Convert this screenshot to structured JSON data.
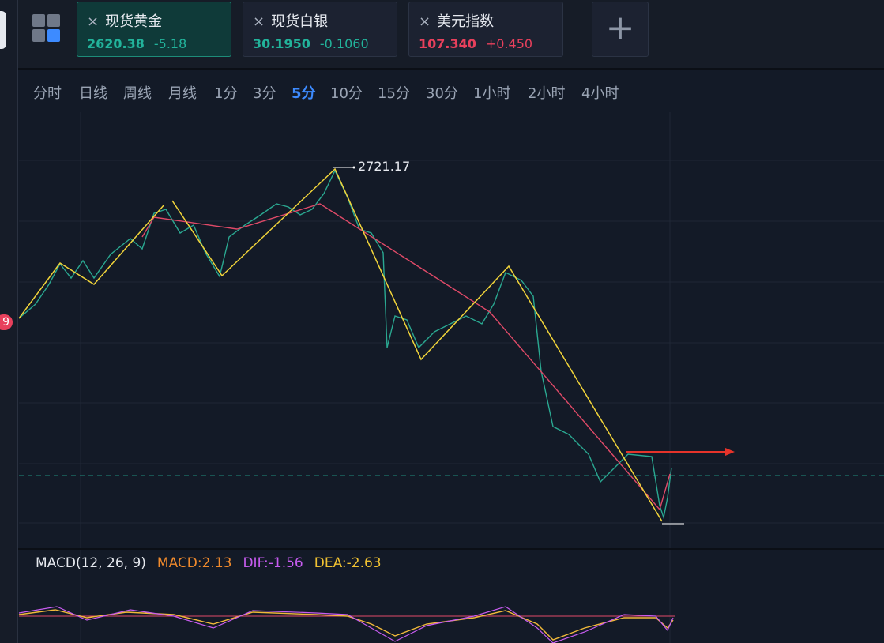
{
  "tabs": [
    {
      "name": "现货黄金",
      "price": "2620.38",
      "change": "-5.18",
      "trend": "down",
      "active": true
    },
    {
      "name": "现货白银",
      "price": "30.1950",
      "change": "-0.1060",
      "trend": "down",
      "active": false
    },
    {
      "name": "美元指数",
      "price": "107.340",
      "change": "+0.450",
      "trend": "up",
      "active": false
    }
  ],
  "close_icon": "×",
  "add_icon": "+",
  "periods": [
    "分时",
    "日线",
    "周线",
    "月线",
    "1分",
    "3分",
    "5分",
    "10分",
    "15分",
    "30分",
    "1小时",
    "2小时",
    "4小时"
  ],
  "selected_period": "5分",
  "side_badge": "9",
  "chart": {
    "high_label": "2721.17"
  },
  "macd": {
    "title": "MACD(12, 26, 9)",
    "macd": "MACD:2.13",
    "dif": "DIF:-1.56",
    "dea": "DEA:-2.63"
  }
}
